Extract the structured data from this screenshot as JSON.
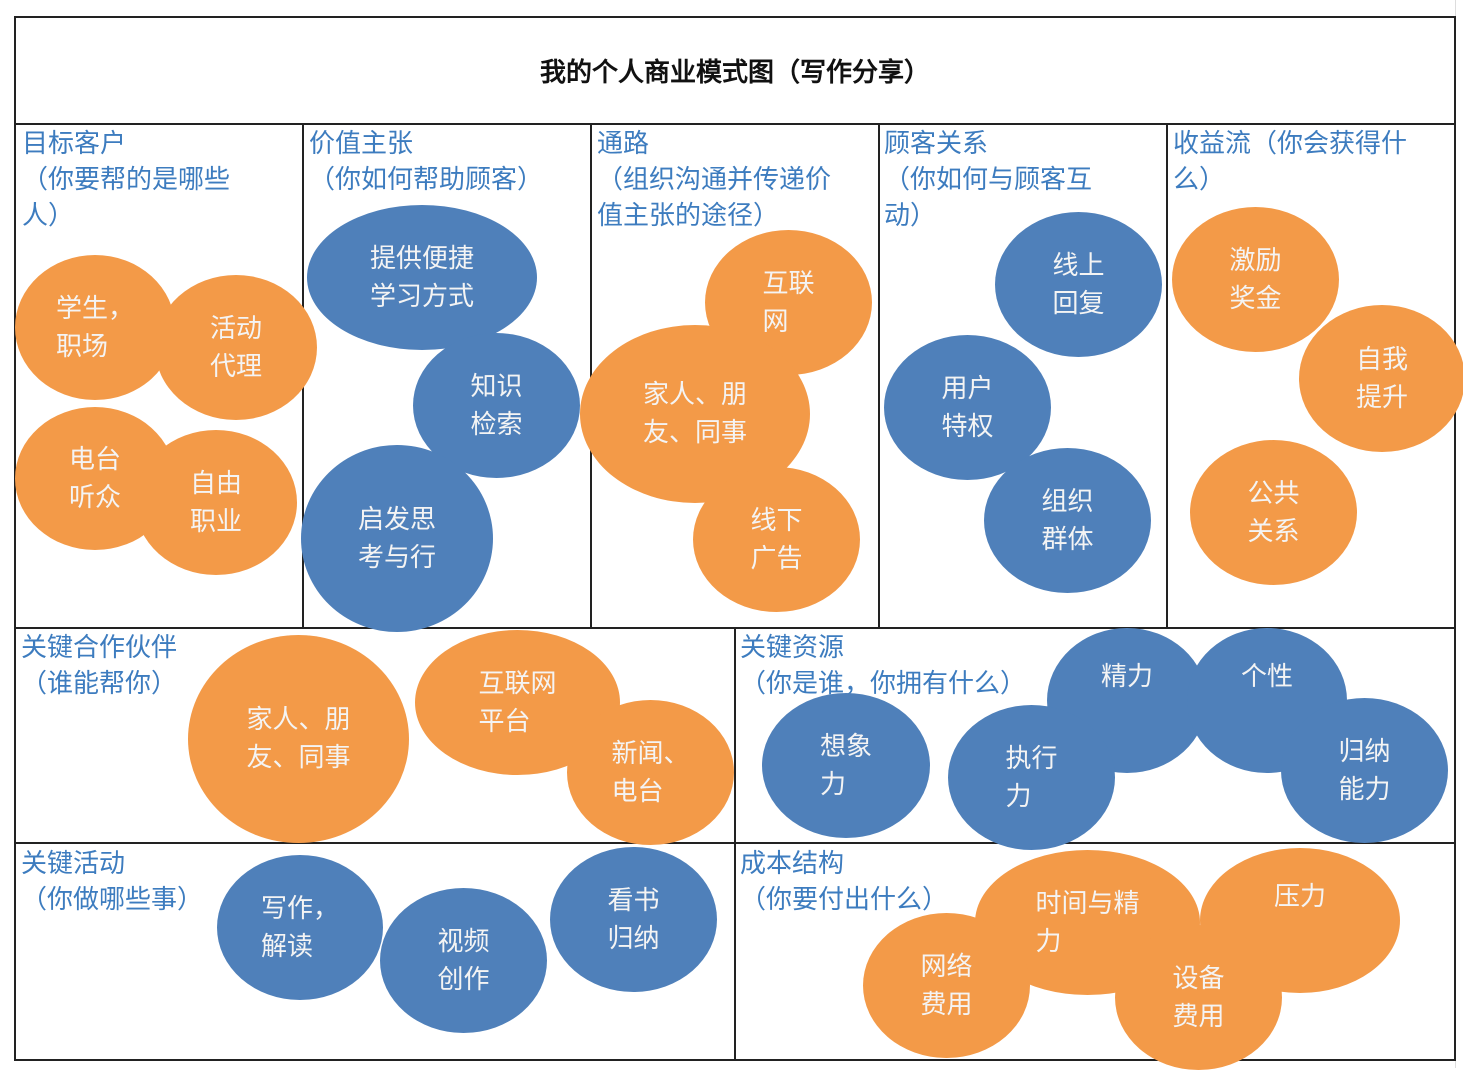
{
  "title": "我的个人商业模式图（写作分享）",
  "colors": {
    "orange": "#f39a48",
    "blue": "#4f80ba",
    "heading": "#3d7cbf"
  },
  "sections": {
    "customers": {
      "heading": "目标客户\n（你要帮的是哪些\n人）",
      "items": [
        "学生，\n职场",
        "活动\n代理",
        "电台\n听众",
        "自由\n职业"
      ]
    },
    "value": {
      "heading": "价值主张\n（你如何帮助顾客）",
      "items": [
        "提供便捷\n学习方式",
        "知识\n检索",
        "启发思\n考与行"
      ]
    },
    "channels": {
      "heading": "通路\n（组织沟通并传递价\n值主张的途径）",
      "items": [
        "互联\n网",
        "家人、朋\n友、同事",
        "线下\n广告"
      ]
    },
    "relations": {
      "heading": "顾客关系\n（你如何与顾客互\n动）",
      "items": [
        "线上\n回复",
        "用户\n特权",
        "组织\n群体"
      ]
    },
    "revenue": {
      "heading": "收益流（你会获得什\n么）",
      "items": [
        "激励\n奖金",
        "自我\n提升",
        "公共\n关系"
      ]
    },
    "partners": {
      "heading": "关键合作伙伴\n（谁能帮你）",
      "items": [
        "家人、朋\n友、同事",
        "互联网\n平台",
        "新闻、\n电台"
      ]
    },
    "resources": {
      "heading": "关键资源\n（你是谁，你拥有什么）",
      "items": [
        "想象\n力",
        "执行\n力",
        "精力",
        "个性",
        "归纳\n能力"
      ]
    },
    "activities": {
      "heading": "关键活动\n（你做哪些事）",
      "items": [
        "写作，\n解读",
        "视频\n创作",
        "看书\n归纳"
      ]
    },
    "cost": {
      "heading": "成本结构\n（你要付出什么）",
      "items": [
        "时间与精\n力",
        "压力",
        "网络\n费用",
        "设备\n费用"
      ]
    }
  }
}
